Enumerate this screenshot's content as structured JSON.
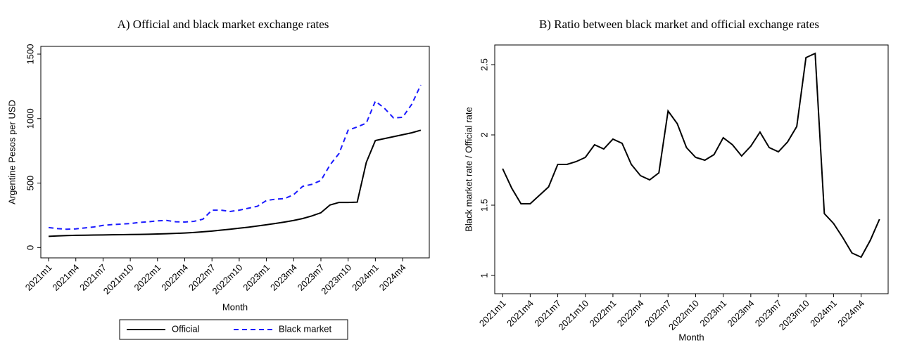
{
  "chart_data": [
    {
      "type": "line",
      "title": "A) Official and black market exchange rates",
      "x_label": "Month",
      "y_label": "Argentine Pesos per USD",
      "categories": [
        "2021m1",
        null,
        null,
        "2021m4",
        null,
        null,
        "2021m7",
        null,
        null,
        "2021m10",
        null,
        null,
        "2022m1",
        null,
        null,
        "2022m4",
        null,
        null,
        "2022m7",
        null,
        null,
        "2022m10",
        null,
        null,
        "2023m1",
        null,
        null,
        "2023m4",
        null,
        null,
        "2023m7",
        null,
        null,
        "2023m10",
        null,
        null,
        "2024m1",
        null,
        null,
        "2024m4",
        null,
        null
      ],
      "series": [
        {
          "name": "Official",
          "color": "#000000",
          "dash": false,
          "values": [
            87,
            90,
            93,
            95,
            96,
            97,
            98,
            99,
            100,
            101,
            102,
            103,
            105,
            107,
            110,
            113,
            117,
            122,
            128,
            135,
            142,
            150,
            158,
            167,
            177,
            187,
            198,
            210,
            225,
            245,
            270,
            330,
            350,
            350,
            352,
            660,
            830,
            845,
            860,
            875,
            890,
            910
          ]
        },
        {
          "name": "Black market",
          "color": "#1a1aff",
          "dash": true,
          "values": [
            155,
            147,
            142,
            145,
            152,
            160,
            172,
            178,
            182,
            186,
            195,
            200,
            207,
            210,
            200,
            198,
            203,
            220,
            290,
            290,
            280,
            290,
            305,
            320,
            365,
            375,
            380,
            410,
            475,
            490,
            520,
            640,
            730,
            910,
            935,
            965,
            1135,
            1080,
            1005,
            1010,
            1110,
            1260
          ]
        }
      ],
      "ylim": [
        -80,
        1560
      ],
      "yticks": [
        0,
        500,
        1000,
        1500
      ],
      "legend": "bottom"
    },
    {
      "type": "line",
      "title": "B) Ratio between black market and official exchange rates",
      "x_label": "Month",
      "y_label": "Black market rate / Official rate",
      "categories": [
        "2021m1",
        null,
        null,
        "2021m4",
        null,
        null,
        "2021m7",
        null,
        null,
        "2021m10",
        null,
        null,
        "2022m1",
        null,
        null,
        "2022m4",
        null,
        null,
        "2022m7",
        null,
        null,
        "2022m10",
        null,
        null,
        "2023m1",
        null,
        null,
        "2023m4",
        null,
        null,
        "2023m7",
        null,
        null,
        "2023m10",
        null,
        null,
        "2024m1",
        null,
        null,
        "2024m4",
        null,
        null
      ],
      "series": [
        {
          "color": "#000000",
          "dash": false,
          "values": [
            1.76,
            1.62,
            1.51,
            1.51,
            1.57,
            1.63,
            1.79,
            1.79,
            1.81,
            1.84,
            1.93,
            1.9,
            1.97,
            1.94,
            1.79,
            1.71,
            1.68,
            1.73,
            2.17,
            2.08,
            1.91,
            1.84,
            1.82,
            1.86,
            1.98,
            1.93,
            1.85,
            1.92,
            2.02,
            1.91,
            1.88,
            1.95,
            2.06,
            2.55,
            2.58,
            1.44,
            1.37,
            1.27,
            1.16,
            1.13,
            1.25,
            1.4
          ]
        }
      ],
      "ylim": [
        0.87,
        2.64
      ],
      "yticks": [
        1,
        1.5,
        2,
        2.5
      ]
    }
  ]
}
